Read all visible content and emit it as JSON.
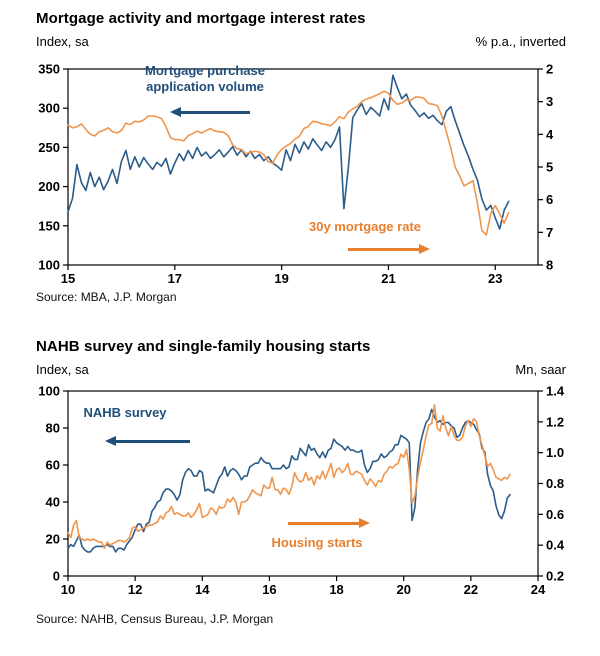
{
  "colors": {
    "blue_line": "#2B5C8A",
    "orange_line": "#F0954C",
    "navy_accent": "#1F4E79",
    "orange_accent": "#E87F2E",
    "axis": "#000000"
  },
  "chart_data": [
    {
      "type": "line",
      "title": "Mortgage activity and mortgage interest rates",
      "source": "Source: MBA, J.P. Morgan",
      "grid": false,
      "legend": "none",
      "left_axis": {
        "unit": "Index, sa",
        "min": 100,
        "max": 350,
        "ticks": [
          100,
          150,
          200,
          250,
          300,
          350
        ],
        "tick_labels": [
          "100",
          "150",
          "200",
          "250",
          "300",
          "350"
        ]
      },
      "right_axis": {
        "unit": "% p.a., inverted",
        "inverted": true,
        "min": 2,
        "max": 8,
        "ticks": [
          2,
          3,
          4,
          5,
          6,
          7,
          8
        ],
        "tick_labels": [
          "2",
          "3",
          "4",
          "5",
          "6",
          "7",
          "8"
        ]
      },
      "x_axis": {
        "min": 2015,
        "max": 2023.8,
        "ticks": [
          2015,
          2017,
          2019,
          2021,
          2023
        ],
        "tick_labels": [
          "15",
          "17",
          "19",
          "21",
          "23"
        ]
      },
      "annotations": [
        {
          "text": "Mortgage purchase application volume",
          "color": "navy",
          "arrow": "left"
        },
        {
          "text": "30y mortgage rate",
          "color": "orange",
          "arrow": "right"
        }
      ],
      "series": [
        {
          "name": "Mortgage purchase application volume",
          "axis": "left",
          "color": "blue_line",
          "x_start": 2015.0,
          "x_step": 0.0833333,
          "values": [
            168,
            185,
            228,
            205,
            195,
            218,
            200,
            212,
            196,
            207,
            222,
            204,
            232,
            246,
            222,
            238,
            225,
            237,
            229,
            222,
            231,
            226,
            236,
            216,
            230,
            242,
            233,
            246,
            236,
            250,
            239,
            244,
            236,
            241,
            247,
            238,
            244,
            251,
            240,
            247,
            238,
            245,
            236,
            241,
            233,
            238,
            230,
            226,
            221,
            247,
            233,
            254,
            243,
            257,
            248,
            261,
            253,
            246,
            257,
            250,
            260,
            276,
            172,
            225,
            288,
            298,
            306,
            292,
            301,
            296,
            290,
            312,
            298,
            342,
            326,
            312,
            318,
            304,
            297,
            289,
            294,
            287,
            291,
            284,
            279,
            296,
            302,
            284,
            268,
            252,
            238,
            222,
            208,
            184,
            170,
            176,
            160,
            146,
            170,
            181
          ]
        },
        {
          "name": "30y mortgage rate",
          "axis": "right",
          "color": "orange_line",
          "x_start": 2015.0,
          "x_step": 0.0833333,
          "values": [
            3.72,
            3.8,
            3.77,
            3.68,
            3.85,
            4.0,
            4.05,
            3.92,
            3.88,
            3.8,
            3.92,
            3.96,
            3.88,
            3.66,
            3.7,
            3.6,
            3.62,
            3.56,
            3.44,
            3.44,
            3.46,
            3.52,
            3.76,
            4.1,
            4.16,
            4.16,
            4.2,
            4.04,
            3.98,
            3.9,
            3.96,
            3.89,
            3.82,
            3.9,
            3.92,
            3.94,
            4.04,
            4.32,
            4.44,
            4.46,
            4.6,
            4.54,
            4.52,
            4.54,
            4.62,
            4.84,
            4.88,
            4.62,
            4.46,
            4.36,
            4.28,
            4.14,
            4.06,
            3.82,
            3.76,
            3.6,
            3.62,
            3.68,
            3.7,
            3.74,
            3.62,
            3.46,
            3.52,
            3.32,
            3.22,
            3.14,
            3.0,
            2.92,
            2.88,
            2.82,
            2.76,
            2.68,
            2.74,
            2.96,
            3.08,
            3.04,
            2.94,
            2.96,
            2.86,
            2.86,
            2.9,
            3.06,
            3.08,
            3.12,
            3.44,
            3.92,
            4.42,
            5.0,
            5.28,
            5.58,
            5.5,
            5.42,
            6.12,
            6.94,
            7.08,
            6.42,
            6.18,
            6.44,
            6.72,
            6.4
          ]
        }
      ]
    },
    {
      "type": "line",
      "title": "NAHB survey and single-family housing starts",
      "source": "Source: NAHB, Census Bureau, J.P. Morgan",
      "grid": false,
      "legend": "none",
      "left_axis": {
        "unit": "Index, sa",
        "min": 0,
        "max": 100,
        "ticks": [
          0,
          20,
          40,
          60,
          80,
          100
        ],
        "tick_labels": [
          "0",
          "20",
          "40",
          "60",
          "80",
          "100"
        ]
      },
      "right_axis": {
        "unit": "Mn, saar",
        "inverted": false,
        "min": 0.2,
        "max": 1.4,
        "ticks": [
          0.2,
          0.4,
          0.6,
          0.8,
          1.0,
          1.2,
          1.4
        ],
        "tick_labels": [
          "0.2",
          "0.4",
          "0.6",
          "0.8",
          "1.0",
          "1.2",
          "1.4"
        ]
      },
      "x_axis": {
        "min": 2010,
        "max": 2024,
        "ticks": [
          2010,
          2012,
          2014,
          2016,
          2018,
          2020,
          2022,
          2024
        ],
        "tick_labels": [
          "10",
          "12",
          "14",
          "16",
          "18",
          "20",
          "22",
          "24"
        ]
      },
      "annotations": [
        {
          "text": "NAHB survey",
          "color": "navy",
          "arrow": "left"
        },
        {
          "text": "Housing starts",
          "color": "orange",
          "arrow": "right"
        }
      ],
      "series": [
        {
          "name": "NAHB survey",
          "axis": "left",
          "color": "blue_line",
          "x_start": 2010.0,
          "x_step": 0.0833333,
          "values": [
            15,
            17,
            16,
            19,
            22,
            16,
            14,
            13,
            13,
            15,
            16,
            16,
            16,
            16,
            17,
            16,
            16,
            13,
            15,
            15,
            14,
            17,
            19,
            21,
            25,
            28,
            28,
            24,
            28,
            29,
            35,
            37,
            40,
            41,
            45,
            47,
            47,
            46,
            44,
            41,
            44,
            52,
            56,
            58,
            57,
            54,
            54,
            57,
            56,
            46,
            47,
            46,
            45,
            49,
            53,
            55,
            59,
            54,
            57,
            58,
            57,
            55,
            52,
            54,
            54,
            59,
            60,
            61,
            61,
            64,
            62,
            61,
            61,
            58,
            58,
            58,
            58,
            60,
            58,
            59,
            65,
            63,
            63,
            69,
            67,
            65,
            71,
            68,
            69,
            66,
            64,
            67,
            64,
            68,
            69,
            74,
            72,
            71,
            70,
            68,
            70,
            68,
            68,
            67,
            67,
            68,
            60,
            56,
            58,
            62,
            62,
            63,
            66,
            64,
            65,
            67,
            68,
            71,
            71,
            76,
            75,
            74,
            72,
            30,
            37,
            58,
            72,
            78,
            83,
            85,
            90,
            86,
            83,
            84,
            82,
            83,
            83,
            81,
            80,
            75,
            76,
            80,
            83,
            84,
            83,
            82,
            79,
            77,
            69,
            67,
            55,
            49,
            46,
            38,
            33,
            31,
            35,
            42,
            44
          ]
        },
        {
          "name": "Housing starts",
          "axis": "right",
          "color": "orange_line",
          "x_start": 2010.0,
          "x_step": 0.0833333,
          "values": [
            0.48,
            0.45,
            0.53,
            0.56,
            0.45,
            0.44,
            0.43,
            0.44,
            0.43,
            0.44,
            0.43,
            0.42,
            0.42,
            0.38,
            0.42,
            0.4,
            0.41,
            0.42,
            0.43,
            0.43,
            0.42,
            0.43,
            0.45,
            0.51,
            0.52,
            0.49,
            0.5,
            0.51,
            0.52,
            0.53,
            0.53,
            0.54,
            0.55,
            0.59,
            0.57,
            0.61,
            0.62,
            0.65,
            0.6,
            0.61,
            0.6,
            0.59,
            0.59,
            0.61,
            0.58,
            0.6,
            0.63,
            0.67,
            0.58,
            0.59,
            0.6,
            0.64,
            0.63,
            0.6,
            0.65,
            0.64,
            0.65,
            0.7,
            0.68,
            0.71,
            0.68,
            0.6,
            0.68,
            0.68,
            0.69,
            0.72,
            0.76,
            0.74,
            0.73,
            0.72,
            0.79,
            0.77,
            0.77,
            0.84,
            0.76,
            0.76,
            0.73,
            0.77,
            0.76,
            0.73,
            0.78,
            0.87,
            0.83,
            0.81,
            0.82,
            0.87,
            0.82,
            0.84,
            0.79,
            0.85,
            0.83,
            0.88,
            0.83,
            0.88,
            0.93,
            0.84,
            0.89,
            0.9,
            0.87,
            0.89,
            0.93,
            0.86,
            0.86,
            0.88,
            0.87,
            0.86,
            0.82,
            0.79,
            0.83,
            0.81,
            0.78,
            0.82,
            0.81,
            0.86,
            0.88,
            0.91,
            0.9,
            0.92,
            0.93,
            0.99,
            0.97,
            1.02,
            0.89,
            0.67,
            0.72,
            0.84,
            0.94,
            1.02,
            1.11,
            1.18,
            1.19,
            1.31,
            1.16,
            1.14,
            1.24,
            1.16,
            1.11,
            1.17,
            1.11,
            1.08,
            1.08,
            1.1,
            1.17,
            1.21,
            1.17,
            1.22,
            1.2,
            1.11,
            1.05,
            0.98,
            0.91,
            0.93,
            0.89,
            0.84,
            0.83,
            0.82,
            0.84,
            0.83,
            0.86
          ]
        }
      ]
    }
  ]
}
